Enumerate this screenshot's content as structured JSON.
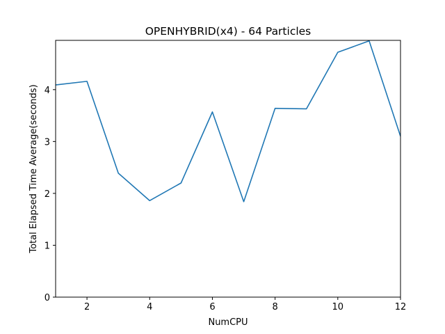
{
  "chart_data": {
    "type": "line",
    "title": "OPENHYBRID(x4) - 64 Particles",
    "xlabel": "NumCPU",
    "ylabel": "Total Elapsed Time Average(seconds)",
    "xlim": [
      1,
      12
    ],
    "ylim": [
      0,
      4.95
    ],
    "xticks": [
      2,
      4,
      6,
      8,
      10,
      12
    ],
    "yticks": [
      0,
      1,
      2,
      3,
      4
    ],
    "grid": false,
    "series": [
      {
        "color": "#1f77b4",
        "x": [
          1,
          2,
          3,
          4,
          5,
          6,
          7,
          8,
          9,
          10,
          11,
          12
        ],
        "y": [
          4.09,
          4.16,
          2.39,
          1.86,
          2.2,
          3.57,
          1.84,
          3.64,
          3.63,
          4.72,
          4.94,
          3.1
        ]
      }
    ]
  }
}
